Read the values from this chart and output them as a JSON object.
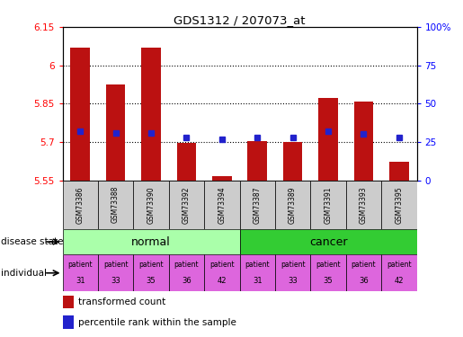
{
  "title": "GDS1312 / 207073_at",
  "samples": [
    "GSM73386",
    "GSM73388",
    "GSM73390",
    "GSM73392",
    "GSM73394",
    "GSM73387",
    "GSM73389",
    "GSM73391",
    "GSM73393",
    "GSM73395"
  ],
  "transformed_count": [
    6.07,
    5.925,
    6.07,
    5.695,
    5.565,
    5.705,
    5.701,
    5.873,
    5.857,
    5.622
  ],
  "percentile_rank": [
    32,
    31,
    31,
    28,
    27,
    28,
    28,
    32,
    30,
    28
  ],
  "ylim": [
    5.55,
    6.15
  ],
  "yticks": [
    5.55,
    5.7,
    5.85,
    6.0,
    6.15
  ],
  "ytick_labels": [
    "5.55",
    "5.7",
    "5.85",
    "6",
    "6.15"
  ],
  "right_yticks": [
    0,
    25,
    50,
    75,
    100
  ],
  "right_ytick_labels": [
    "0",
    "25",
    "50",
    "75",
    "100%"
  ],
  "bar_color": "#bb1111",
  "dot_color": "#2222cc",
  "bar_bottom": 5.55,
  "normal_color": "#aaffaa",
  "cancer_color": "#33cc33",
  "individual_color": "#dd66dd",
  "individual_color2": "#ee44ee",
  "individual_labels_top": [
    "patient",
    "patient",
    "patient",
    "patient",
    "patient",
    "patient",
    "patient",
    "patient",
    "patient",
    "patient"
  ],
  "individual_labels_bot": [
    "31",
    "33",
    "35",
    "36",
    "42",
    "31",
    "33",
    "35",
    "36",
    "42"
  ],
  "disease_state_label": "disease state",
  "individual_label": "individual",
  "legend_items": [
    "transformed count",
    "percentile rank within the sample"
  ],
  "sample_bg_color": "#cccccc",
  "white": "#ffffff"
}
